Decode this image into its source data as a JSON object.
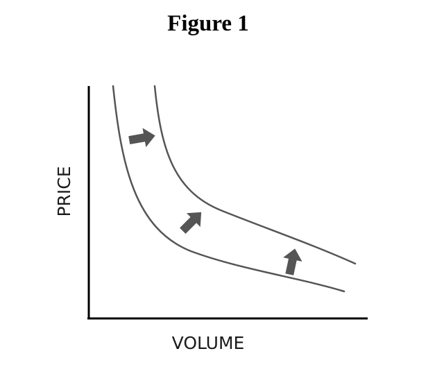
{
  "title": "Figure 1",
  "chart_data": {
    "type": "line",
    "title": "Figure 1",
    "xlabel": "VOLUME",
    "ylabel": "PRICE",
    "ticks": "none",
    "grid": false,
    "legend": "none",
    "series": [
      {
        "shape": "downward-sloping convex curve (lower)",
        "color": "#555555"
      },
      {
        "shape": "downward-sloping convex curve (upper, shifted out)",
        "color": "#555555"
      }
    ],
    "annotations": [
      {
        "type": "arrow",
        "direction": "right",
        "meaning": "curve shifts outward"
      },
      {
        "type": "arrow",
        "direction": "up-right",
        "meaning": "curve shifts outward"
      },
      {
        "type": "arrow",
        "direction": "up",
        "meaning": "curve shifts outward"
      }
    ],
    "arrow_color": "#555555"
  }
}
